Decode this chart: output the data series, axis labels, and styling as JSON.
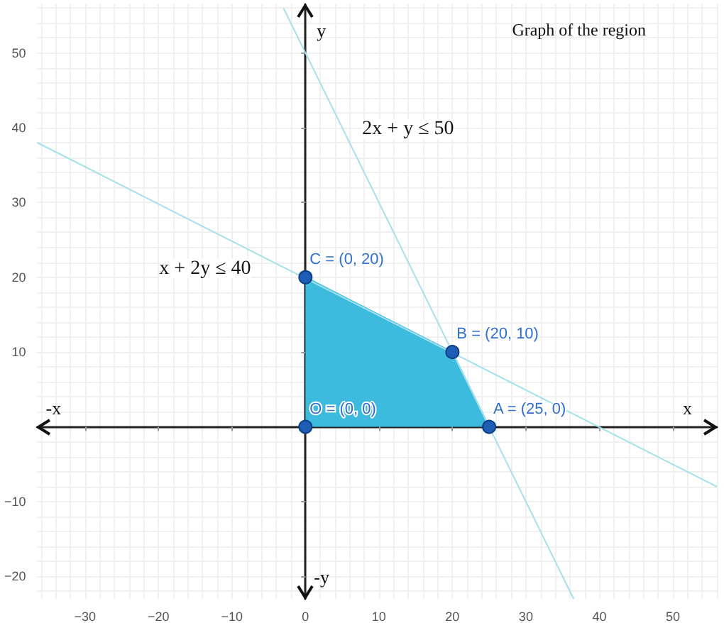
{
  "chart_data": {
    "type": "line",
    "title": "Graph of the region",
    "xlabel": "x",
    "ylabel": "y",
    "xlim": [
      -36.5,
      56
    ],
    "ylim": [
      -23,
      56.5
    ],
    "xticks": [
      {
        "value": -30,
        "label": "−30"
      },
      {
        "value": -20,
        "label": "−20"
      },
      {
        "value": -10,
        "label": "−10"
      },
      0,
      10,
      20,
      30,
      40,
      50
    ],
    "yticks": [
      {
        "value": -20,
        "label": "−20"
      },
      {
        "value": -10,
        "label": "−10"
      },
      10,
      20,
      30,
      40,
      50
    ],
    "grid": true,
    "series": [
      {
        "type": "area",
        "color": "#3dbbdf",
        "x": [
          0,
          20,
          25
        ],
        "values": [
          20,
          10,
          0
        ]
      },
      {
        "type": "line",
        "color": "#a6e0ec",
        "x": [
          -3,
          36.5
        ],
        "values": [
          56,
          -23
        ]
      },
      {
        "type": "line",
        "color": "#a6e0ec",
        "x": [
          -36.5,
          56
        ],
        "values": [
          38,
          -8
        ]
      },
      {
        "type": "scatter",
        "color": "#1d5db5",
        "marker": "circle",
        "x": [
          0,
          25,
          20,
          0
        ],
        "values": [
          0,
          0,
          10,
          20
        ]
      }
    ],
    "annotations": [
      {
        "text": "O = (0, 0)",
        "x": 0,
        "y": 0
      },
      {
        "text": "A = (25, 0)",
        "x": 25,
        "y": 0
      },
      {
        "text": "B = (20, 10)",
        "x": 20,
        "y": 10
      },
      {
        "text": "C = (0, 20)",
        "x": 0,
        "y": 20
      },
      "2x + y ≤ 50",
      "x + 2y ≤ 40",
      "-x",
      "-y"
    ]
  }
}
